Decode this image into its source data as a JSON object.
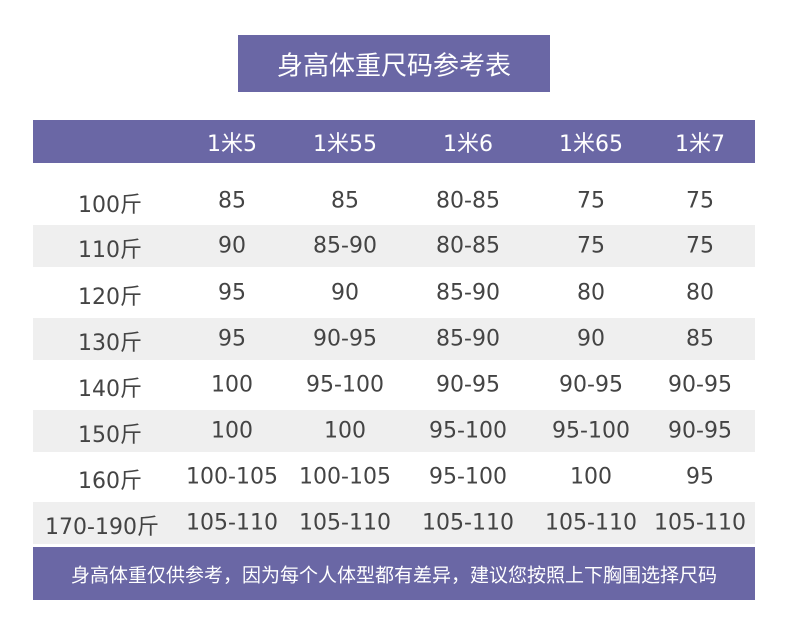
{
  "title": "身高体重尺码参考表",
  "table": {
    "header": [
      "1米5",
      "1米55",
      "1米6",
      "1米65",
      "1米7"
    ],
    "rows": [
      {
        "label": "100斤",
        "cells": [
          "85",
          "85",
          "80-85",
          "75",
          "75"
        ]
      },
      {
        "label": "110斤",
        "cells": [
          "90",
          "85-90",
          "80-85",
          "75",
          "75"
        ]
      },
      {
        "label": "120斤",
        "cells": [
          "95",
          "90",
          "85-90",
          "80",
          "80"
        ]
      },
      {
        "label": "130斤",
        "cells": [
          "95",
          "90-95",
          "85-90",
          "90",
          "85"
        ]
      },
      {
        "label": "140斤",
        "cells": [
          "100",
          "95-100",
          "90-95",
          "90-95",
          "90-95"
        ]
      },
      {
        "label": "150斤",
        "cells": [
          "100",
          "100",
          "95-100",
          "95-100",
          "90-95"
        ]
      },
      {
        "label": "160斤",
        "cells": [
          "100-105",
          "100-105",
          "95-100",
          "100",
          "95"
        ]
      },
      {
        "label": "170-190斤",
        "cells": [
          "105-110",
          "105-110",
          "105-110",
          "105-110",
          "105-110"
        ]
      }
    ]
  },
  "footer": "身高体重仅供参考，因为每个人体型都有差异，建议您按照上下胸围选择尺码"
}
